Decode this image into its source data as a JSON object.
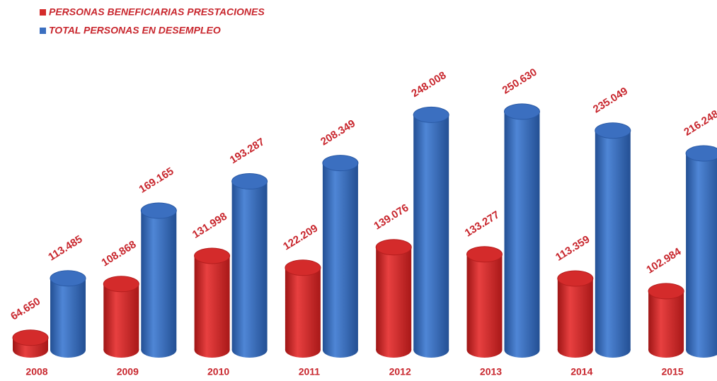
{
  "chart_data": {
    "type": "bar3d",
    "categories": [
      "2008",
      "2009",
      "2010",
      "2011",
      "2012",
      "2013",
      "2014",
      "2015"
    ],
    "series": [
      {
        "name": "PERSONAS BENEFICIARIAS PRESTACIONES",
        "color": "#d42b2b",
        "values": [
          64650,
          108868,
          131998,
          122209,
          139076,
          133277,
          113359,
          102984
        ],
        "value_labels": [
          "64.650",
          "108.868",
          "131.998",
          "122.209",
          "139.076",
          "133.277",
          "113.359",
          "102.984"
        ]
      },
      {
        "name": "TOTAL PERSONAS EN DESEMPLEO",
        "color": "#3b6fc0",
        "values": [
          113485,
          169165,
          193287,
          208349,
          248008,
          250630,
          235049,
          216248
        ],
        "value_labels": [
          "113.485",
          "169.165",
          "193.287",
          "208.349",
          "248.008",
          "250.630",
          "235.049",
          "216.248"
        ]
      }
    ]
  }
}
